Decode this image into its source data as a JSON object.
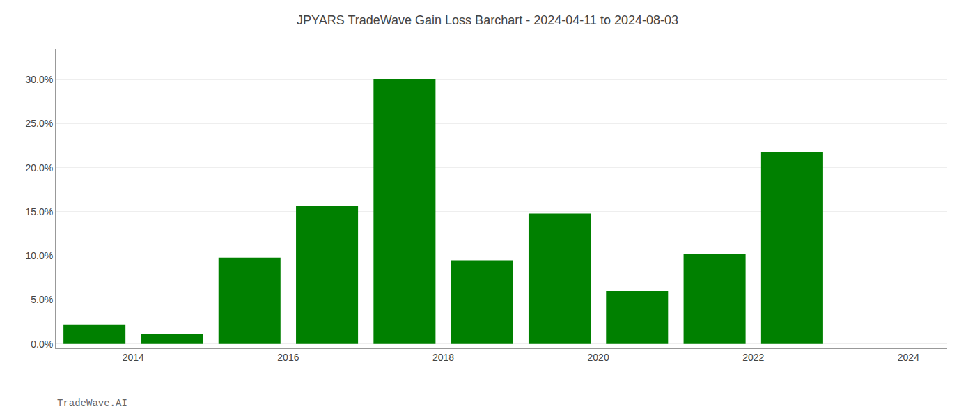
{
  "chart_data": {
    "type": "bar",
    "title": "JPYARS TradeWave Gain Loss Barchart - 2024-04-11 to 2024-08-03",
    "annotations": [
      "TradeWave.AI"
    ],
    "x": [
      2013.5,
      2014.5,
      2015.5,
      2016.5,
      2017.5,
      2018.5,
      2019.5,
      2020.5,
      2021.5,
      2022.5
    ],
    "values": [
      0.022,
      0.011,
      0.098,
      0.157,
      0.301,
      0.095,
      0.148,
      0.06,
      0.102,
      0.218
    ],
    "color": "#008000",
    "xlim": [
      2013.0,
      2024.5
    ],
    "xticks": [
      2014,
      2016,
      2018,
      2020,
      2022,
      2024
    ],
    "ylim": [
      -0.005,
      0.335
    ],
    "yticks": [
      {
        "value": 0.0,
        "label": "0.0%"
      },
      {
        "value": 0.05,
        "label": "5.0%"
      },
      {
        "value": 0.1,
        "label": "10.0%"
      },
      {
        "value": 0.15,
        "label": "15.0%"
      },
      {
        "value": 0.2,
        "label": "20.0%"
      },
      {
        "value": 0.25,
        "label": "25.0%"
      },
      {
        "value": 0.3,
        "label": "30.0%"
      }
    ],
    "grid": true
  }
}
